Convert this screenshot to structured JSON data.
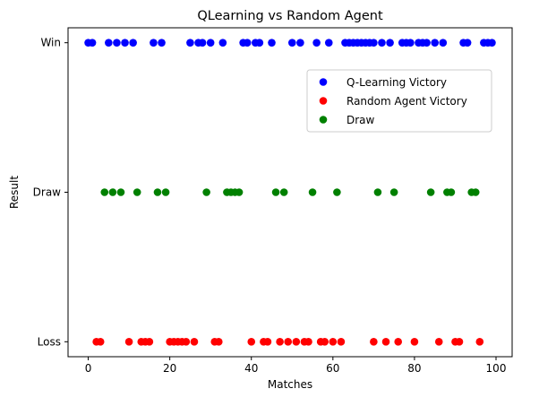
{
  "chart_data": {
    "type": "scatter",
    "title": "QLearning vs Random Agent",
    "xlabel": "Matches",
    "ylabel": "Result",
    "xlim": [
      -4.95,
      103.95
    ],
    "ylim": [
      -0.1,
      2.1
    ],
    "x_ticks": [
      0,
      20,
      40,
      60,
      80,
      100
    ],
    "y_categories": [
      "Loss",
      "Draw",
      "Win"
    ],
    "legend_position": "upper-right",
    "grid": false,
    "series": [
      {
        "name": "Q-Learning Victory",
        "color": "#0000ff",
        "y": "Win",
        "x": [
          0,
          1,
          5,
          7,
          9,
          11,
          16,
          18,
          25,
          27,
          28,
          30,
          33,
          38,
          39,
          41,
          42,
          45,
          50,
          52,
          56,
          59,
          63,
          64,
          65,
          66,
          67,
          68,
          69,
          70,
          72,
          74,
          77,
          78,
          79,
          81,
          82,
          83,
          85,
          87,
          92,
          93,
          97,
          98,
          99
        ]
      },
      {
        "name": "Random Agent Victory",
        "color": "#ff0000",
        "y": "Loss",
        "x": [
          2,
          3,
          10,
          13,
          14,
          15,
          20,
          21,
          22,
          23,
          24,
          26,
          31,
          32,
          40,
          43,
          44,
          47,
          49,
          51,
          53,
          54,
          57,
          58,
          60,
          62,
          70,
          73,
          76,
          80,
          86,
          90,
          91,
          96
        ]
      },
      {
        "name": "Draw",
        "color": "#008000",
        "y": "Draw",
        "x": [
          4,
          6,
          8,
          12,
          17,
          19,
          29,
          34,
          35,
          36,
          37,
          46,
          48,
          55,
          61,
          71,
          75,
          84,
          88,
          89,
          94,
          95
        ]
      }
    ]
  }
}
